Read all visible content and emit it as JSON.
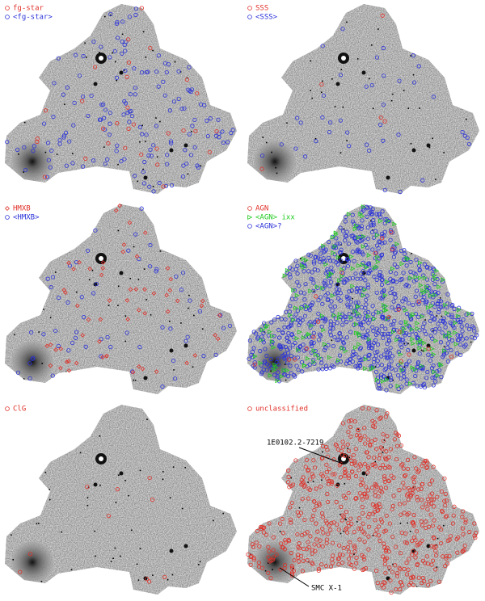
{
  "panels": [
    {
      "legend": [
        {
          "label": "fg-star",
          "color": "#e03028",
          "marker": "circle"
        },
        {
          "label": "<fg-star>",
          "color": "#2a32d8",
          "marker": "circle"
        }
      ]
    },
    {
      "legend": [
        {
          "label": "SSS",
          "color": "#e03028",
          "marker": "circle"
        },
        {
          "label": "<SSS>",
          "color": "#2a32d8",
          "marker": "circle"
        }
      ]
    },
    {
      "legend": [
        {
          "label": "HMXB",
          "color": "#e03028",
          "marker": "diamond"
        },
        {
          "label": "<HMXB>",
          "color": "#2a32d8",
          "marker": "circle"
        }
      ]
    },
    {
      "legend": [
        {
          "label": "AGN",
          "color": "#e03028",
          "marker": "circle"
        },
        {
          "label": "<AGN> ixx",
          "color": "#22cc22",
          "marker": "triangle"
        },
        {
          "label": "<AGN>?",
          "color": "#2a32d8",
          "marker": "circle"
        }
      ]
    },
    {
      "legend": [
        {
          "label": "ClG",
          "color": "#e03028",
          "marker": "circle"
        }
      ]
    },
    {
      "legend": [
        {
          "label": "unclassified",
          "color": "#e03028",
          "marker": "circle"
        }
      ]
    }
  ],
  "annotations": [
    {
      "text": "1E0102.2-7219"
    },
    {
      "text": "SMC X-1"
    }
  ]
}
